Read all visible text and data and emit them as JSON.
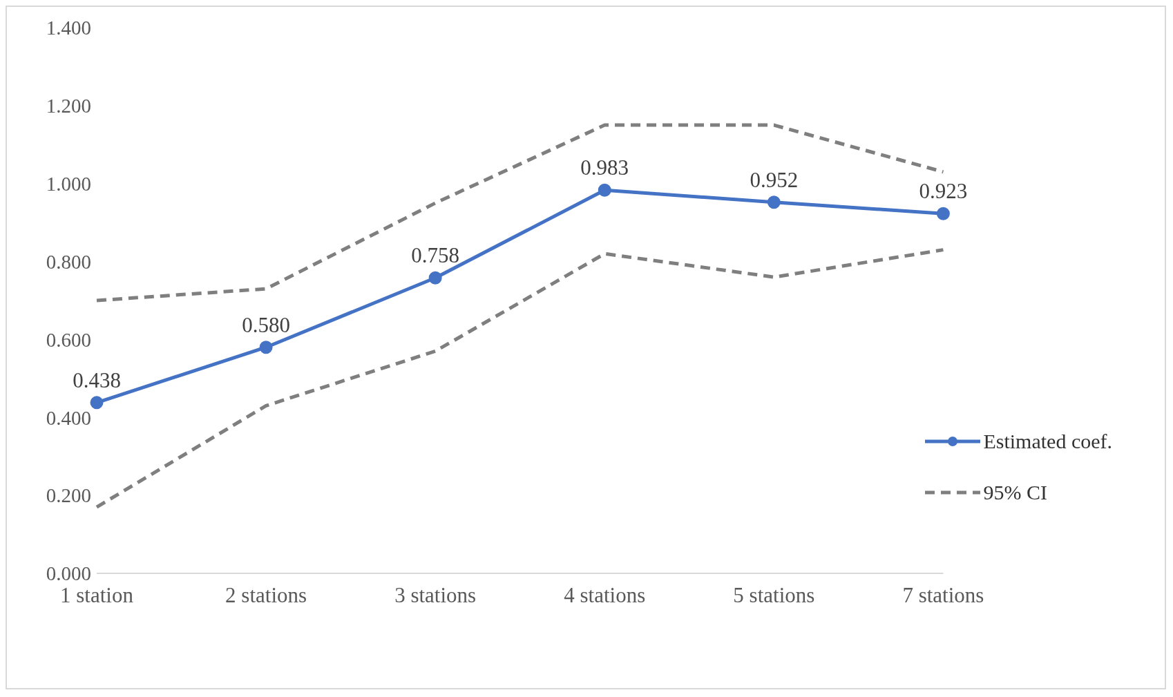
{
  "chart_data": {
    "type": "line",
    "categories": [
      "1 station",
      "2 stations",
      "3 stations",
      "4 stations",
      "5 stations",
      "7 stations"
    ],
    "series": [
      {
        "name": "Estimated coef.",
        "color": "#4472c4",
        "values": [
          0.438,
          0.58,
          0.758,
          0.983,
          0.952,
          0.923
        ],
        "value_labels": [
          "0.438",
          "0.580",
          "0.758",
          "0.983",
          "0.952",
          "0.923"
        ],
        "marker": "circle",
        "line_style": "solid"
      },
      {
        "name": "95% CI",
        "color": "#7f7f7f",
        "values": [
          0.7,
          0.73,
          0.95,
          1.15,
          1.15,
          1.03
        ],
        "marker": "none",
        "line_style": "dashed"
      },
      {
        "color": "#7f7f7f",
        "values": [
          0.17,
          0.43,
          0.57,
          0.82,
          0.76,
          0.83
        ],
        "marker": "none",
        "line_style": "dashed"
      }
    ],
    "ylim": [
      0,
      1.4
    ],
    "yticks": [
      {
        "value": 0,
        "label": "0.000"
      },
      {
        "value": 0.2,
        "label": "0.200"
      },
      {
        "value": 0.4,
        "label": "0.400"
      },
      {
        "value": 0.6,
        "label": "0.600"
      },
      {
        "value": 0.8,
        "label": "0.800"
      },
      {
        "value": 1,
        "label": "1.000"
      },
      {
        "value": 1.2,
        "label": "1.200"
      },
      {
        "value": 1.4,
        "label": "1.400"
      }
    ],
    "grid": false,
    "legend": "bottom right"
  }
}
